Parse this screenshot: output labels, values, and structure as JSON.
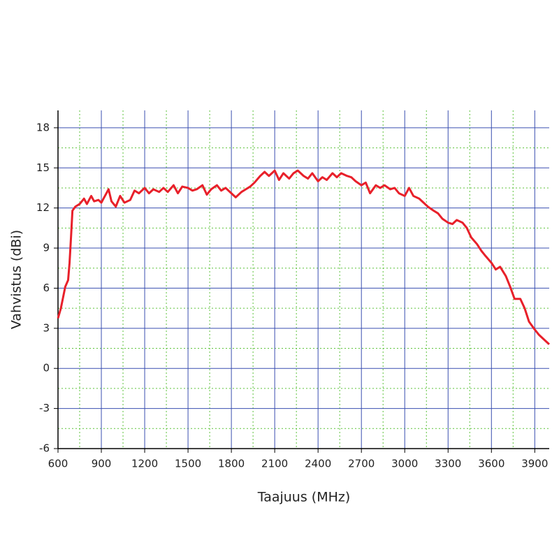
{
  "chart_data": {
    "type": "line",
    "xlabel": "Taajuus (MHz)",
    "ylabel": "Vahvistus (dBi)",
    "xlim": [
      600,
      4000
    ],
    "ylim": [
      -6,
      19.3
    ],
    "xticks": [
      600,
      900,
      1200,
      1500,
      1800,
      2100,
      2400,
      2700,
      3000,
      3300,
      3600,
      3900
    ],
    "yticks": [
      -6,
      -3,
      0,
      3,
      6,
      9,
      12,
      15,
      18
    ],
    "minor_xticks": [
      750,
      1050,
      1350,
      1650,
      1950,
      2250,
      2550,
      2850,
      3150,
      3450,
      3750
    ],
    "minor_yticks": [
      -4.5,
      -1.5,
      1.5,
      4.5,
      7.5,
      10.5,
      13.5,
      16.5
    ],
    "grid": true,
    "major_grid_color": "#3a4fb0",
    "minor_grid_color": "#5cc23a",
    "x": [
      600,
      620,
      650,
      670,
      680,
      690,
      700,
      720,
      750,
      780,
      800,
      830,
      850,
      880,
      900,
      920,
      950,
      970,
      1000,
      1030,
      1060,
      1100,
      1130,
      1160,
      1200,
      1230,
      1260,
      1300,
      1330,
      1360,
      1400,
      1430,
      1460,
      1500,
      1530,
      1560,
      1600,
      1630,
      1660,
      1700,
      1730,
      1760,
      1800,
      1830,
      1870,
      1900,
      1930,
      1960,
      2000,
      2030,
      2060,
      2100,
      2130,
      2160,
      2200,
      2230,
      2260,
      2300,
      2330,
      2360,
      2400,
      2430,
      2460,
      2500,
      2530,
      2560,
      2600,
      2630,
      2660,
      2700,
      2730,
      2760,
      2800,
      2830,
      2860,
      2900,
      2930,
      2960,
      3000,
      3030,
      3060,
      3100,
      3130,
      3160,
      3200,
      3230,
      3260,
      3300,
      3330,
      3360,
      3400,
      3430,
      3460,
      3500,
      3530,
      3560,
      3600,
      3630,
      3660,
      3700,
      3730,
      3760,
      3800,
      3830,
      3860,
      3900,
      3930,
      3960,
      4000
    ],
    "series": [
      {
        "color": "#e8202a",
        "values": [
          3.75,
          4.5,
          6.1,
          6.6,
          7.9,
          9.8,
          11.8,
          12.1,
          12.3,
          12.7,
          12.3,
          12.9,
          12.5,
          12.6,
          12.4,
          12.8,
          13.4,
          12.5,
          12.1,
          12.9,
          12.4,
          12.6,
          13.3,
          13.1,
          13.5,
          13.1,
          13.4,
          13.2,
          13.5,
          13.2,
          13.7,
          13.1,
          13.6,
          13.5,
          13.3,
          13.4,
          13.7,
          13.0,
          13.4,
          13.7,
          13.3,
          13.5,
          13.1,
          12.8,
          13.2,
          13.4,
          13.6,
          13.9,
          14.4,
          14.7,
          14.4,
          14.8,
          14.1,
          14.6,
          14.2,
          14.6,
          14.8,
          14.4,
          14.2,
          14.6,
          14.0,
          14.3,
          14.1,
          14.6,
          14.3,
          14.6,
          14.4,
          14.3,
          14.0,
          13.7,
          13.9,
          13.1,
          13.7,
          13.5,
          13.7,
          13.4,
          13.5,
          13.1,
          12.9,
          13.5,
          12.9,
          12.7,
          12.4,
          12.1,
          11.8,
          11.6,
          11.2,
          10.9,
          10.8,
          11.1,
          10.9,
          10.5,
          9.8,
          9.3,
          8.8,
          8.4,
          7.9,
          7.4,
          7.6,
          6.9,
          6.1,
          5.2,
          5.2,
          4.5,
          3.5,
          2.9,
          2.5,
          2.2,
          1.8
        ]
      }
    ]
  }
}
